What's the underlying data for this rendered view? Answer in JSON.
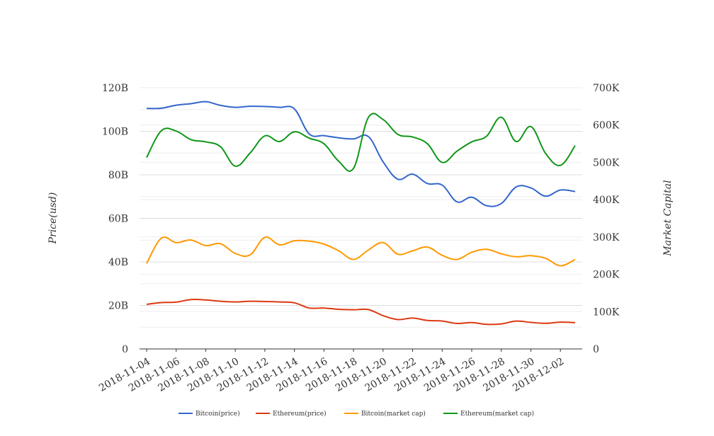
{
  "chart_data": {
    "type": "line",
    "title": "",
    "x": [
      "2018-11-04",
      "2018-11-05",
      "2018-11-06",
      "2018-11-07",
      "2018-11-08",
      "2018-11-09",
      "2018-11-10",
      "2018-11-11",
      "2018-11-12",
      "2018-11-13",
      "2018-11-14",
      "2018-11-15",
      "2018-11-16",
      "2018-11-17",
      "2018-11-18",
      "2018-11-19",
      "2018-11-20",
      "2018-11-21",
      "2018-11-22",
      "2018-11-23",
      "2018-11-24",
      "2018-11-25",
      "2018-11-26",
      "2018-11-27",
      "2018-11-28",
      "2018-11-29",
      "2018-11-30",
      "2018-12-01",
      "2018-12-02",
      "2018-12-03"
    ],
    "x_tick_labels": [
      "2018-11-04",
      "2018-11-06",
      "2018-11-08",
      "2018-11-10",
      "2018-11-12",
      "2018-11-14",
      "2018-11-16",
      "2018-11-18",
      "2018-11-20",
      "2018-11-22",
      "2018-11-24",
      "2018-11-26",
      "2018-11-28",
      "2018-11-30",
      "2018-12-02"
    ],
    "ylabel": "Price(usd)",
    "y2label": "Market Capital",
    "ylim": [
      0,
      120000000000
    ],
    "y2lim": [
      0,
      700000
    ],
    "y_ticks": [
      "0",
      "20B",
      "40B",
      "60B",
      "80B",
      "100B",
      "120B"
    ],
    "y2_ticks": [
      "0",
      "100K",
      "200K",
      "300K",
      "400K",
      "500K",
      "600K",
      "700K"
    ],
    "grid": true,
    "legend_position": "bottom",
    "series": [
      {
        "name": "Bitcoin(price)",
        "axis": "left",
        "color": "#3366cc",
        "values": [
          110500000000,
          110600000000,
          112000000000,
          112700000000,
          113600000000,
          111900000000,
          111000000000,
          111500000000,
          111400000000,
          111000000000,
          110300000000,
          98800000000,
          98000000000,
          97000000000,
          96500000000,
          97600000000,
          86000000000,
          78000000000,
          80300000000,
          76000000000,
          75300000000,
          67600000000,
          69700000000,
          65800000000,
          66800000000,
          74400000000,
          74000000000,
          70200000000,
          73000000000,
          72300000000
        ]
      },
      {
        "name": "Ethereum(price)",
        "axis": "left",
        "color": "#dc3912",
        "values": [
          20500000000,
          21300000000,
          21500000000,
          22700000000,
          22500000000,
          21900000000,
          21600000000,
          21900000000,
          21800000000,
          21600000000,
          21200000000,
          18800000000,
          18800000000,
          18200000000,
          18000000000,
          18100000000,
          15300000000,
          13500000000,
          14200000000,
          13100000000,
          12800000000,
          11700000000,
          12100000000,
          11300000000,
          11500000000,
          12800000000,
          12200000000,
          11800000000,
          12300000000,
          12100000000
        ]
      },
      {
        "name": "Bitcoin(market cap)",
        "axis": "right",
        "color": "#ff9900",
        "values": [
          229000,
          297000,
          285000,
          292000,
          277000,
          282000,
          256000,
          252000,
          299000,
          279000,
          290000,
          289000,
          281000,
          263000,
          240000,
          265000,
          285000,
          254000,
          263000,
          273000,
          251000,
          240000,
          259000,
          267000,
          255000,
          247000,
          250000,
          243000,
          223000,
          240000
        ]
      },
      {
        "name": "Ethereum(market cap)",
        "axis": "right",
        "color": "#109618",
        "values": [
          513000,
          585000,
          584000,
          561000,
          555000,
          542000,
          490000,
          525000,
          571000,
          556000,
          582000,
          565000,
          550000,
          503000,
          484000,
          620000,
          615000,
          575000,
          568000,
          550000,
          500000,
          530000,
          555000,
          570000,
          621000,
          556000,
          596000,
          524000,
          492000,
          545000
        ]
      }
    ]
  }
}
